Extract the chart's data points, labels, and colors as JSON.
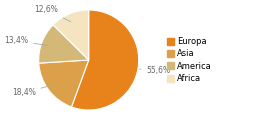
{
  "labels": [
    "Europa",
    "Asia",
    "America",
    "Africa"
  ],
  "values": [
    55.6,
    18.4,
    13.4,
    12.6
  ],
  "colors": [
    "#E8821A",
    "#DDA04A",
    "#D4B878",
    "#F5E4C0"
  ],
  "pct_labels": [
    "55,6%",
    "18,4%",
    "13,4%",
    "12,6%"
  ],
  "legend_labels": [
    "Europa",
    "Asia",
    "America",
    "Africa"
  ],
  "legend_colors": [
    "#E8821A",
    "#DDA04A",
    "#D4B878",
    "#F5E4C0"
  ],
  "startangle": 90,
  "figsize": [
    2.8,
    1.2
  ],
  "dpi": 100
}
